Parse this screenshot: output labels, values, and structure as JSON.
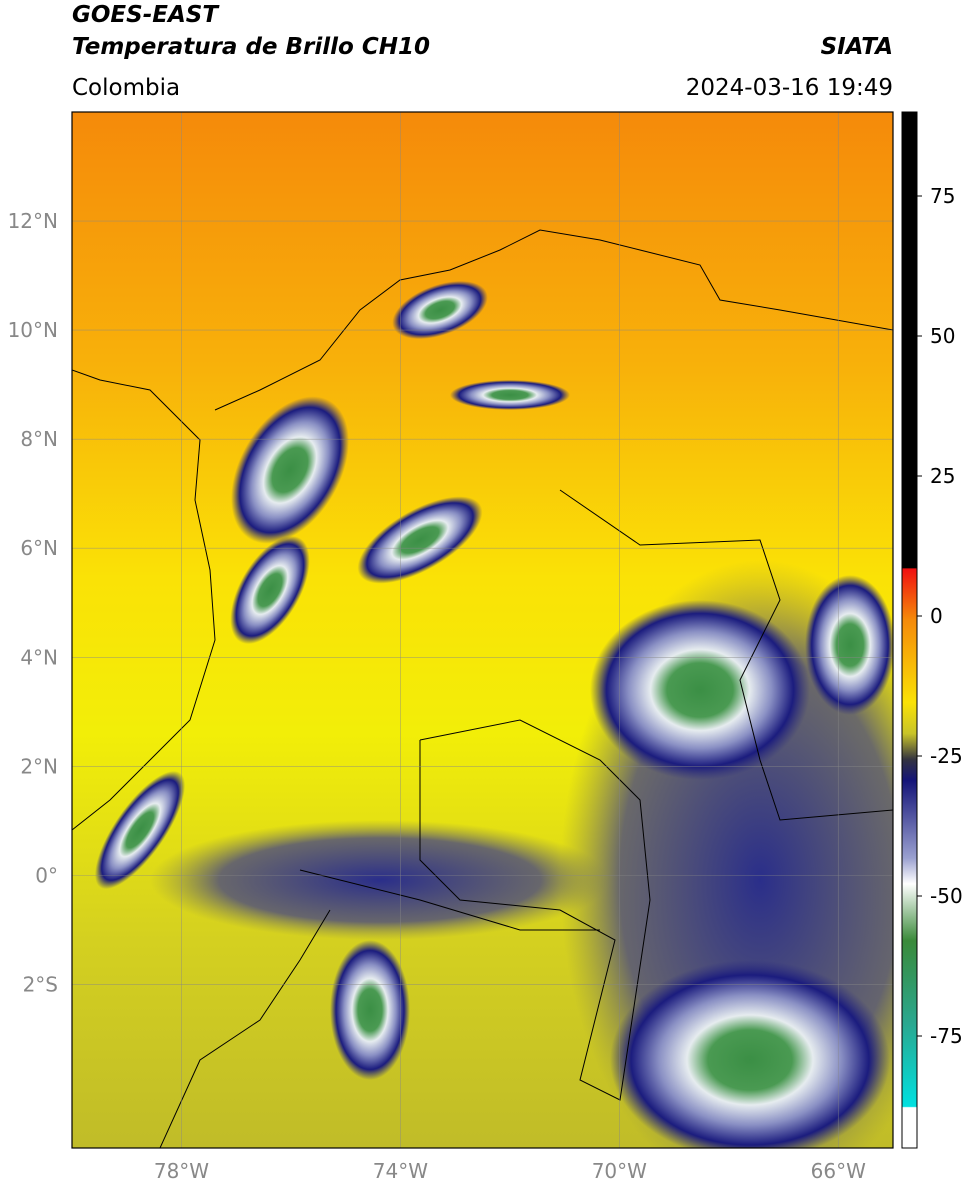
{
  "header": {
    "title": "GOES-EAST",
    "subtitle": "Temperatura de Brillo CH10",
    "region": "Colombia",
    "source": "SIATA",
    "timestamp": "2024-03-16 19:49"
  },
  "map": {
    "xlim": [
      -80,
      -65
    ],
    "ylim": [
      -5,
      14
    ],
    "xticks": [
      {
        "value": -78,
        "label": "78°W"
      },
      {
        "value": -74,
        "label": "74°W"
      },
      {
        "value": -70,
        "label": "70°W"
      },
      {
        "value": -66,
        "label": "66°W"
      }
    ],
    "yticks": [
      {
        "value": 12,
        "label": "12°N"
      },
      {
        "value": 10,
        "label": "10°N"
      },
      {
        "value": 8,
        "label": "8°N"
      },
      {
        "value": 6,
        "label": "6°N"
      },
      {
        "value": 4,
        "label": "4°N"
      },
      {
        "value": 2,
        "label": "2°N"
      },
      {
        "value": 0,
        "label": "0°"
      },
      {
        "value": -2,
        "label": "2°S"
      }
    ]
  },
  "colorbar": {
    "lim": [
      -95,
      90
    ],
    "ticks": [
      75,
      50,
      25,
      0,
      -25,
      -50,
      -75
    ]
  }
}
